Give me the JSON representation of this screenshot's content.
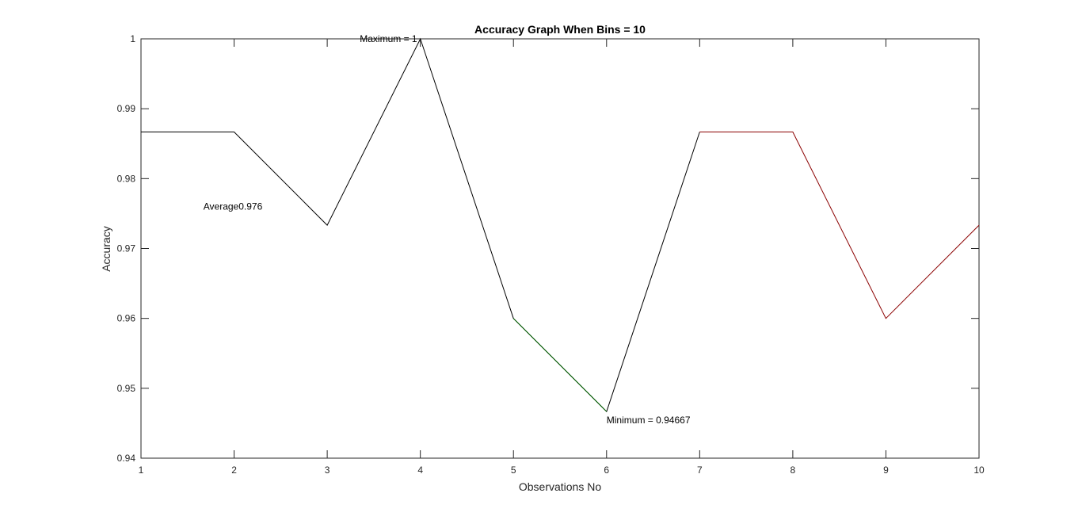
{
  "chart_data": {
    "type": "line",
    "title": "Accuracy Graph When Bins = 10",
    "xlabel": "Observations No",
    "ylabel": "Accuracy",
    "xlim": [
      1,
      10
    ],
    "ylim": [
      0.94,
      1
    ],
    "xticks": [
      1,
      2,
      3,
      4,
      5,
      6,
      7,
      8,
      9,
      10
    ],
    "xtick_labels": [
      "1",
      "2",
      "3",
      "4",
      "5",
      "6",
      "7",
      "8",
      "9",
      "10"
    ],
    "yticks": [
      0.94,
      0.95,
      0.96,
      0.97,
      0.98,
      0.99,
      1
    ],
    "ytick_labels": [
      "0.94",
      "0.95",
      "0.96",
      "0.97",
      "0.98",
      "0.99",
      "1"
    ],
    "grid": false,
    "legend": "none",
    "x": [
      1,
      2,
      3,
      4,
      5,
      6,
      7,
      8,
      9,
      10
    ],
    "series": [
      {
        "color": "#000000",
        "x": [
          1,
          2,
          3,
          4,
          5,
          6,
          7
        ],
        "values": [
          0.98667,
          0.98667,
          0.97333,
          1,
          0.96,
          0.94667,
          0.98667
        ]
      },
      {
        "color": "#006400",
        "x": [
          5,
          6
        ],
        "values": [
          0.96,
          0.94667
        ]
      },
      {
        "color": "#8b0000",
        "x": [
          7,
          8,
          9,
          10
        ],
        "values": [
          0.98667,
          0.98667,
          0.96,
          0.97333
        ]
      }
    ],
    "annotations": [
      {
        "text": "Maximum = 1",
        "x": 3.35,
        "y": 1,
        "anchor": "start"
      },
      {
        "text": "Average0.976",
        "x": 1.67,
        "y": 0.976,
        "anchor": "start"
      },
      {
        "text": "Minimum = 0.94667",
        "x": 6,
        "y": 0.94667,
        "anchor": "start",
        "below": true
      }
    ]
  }
}
